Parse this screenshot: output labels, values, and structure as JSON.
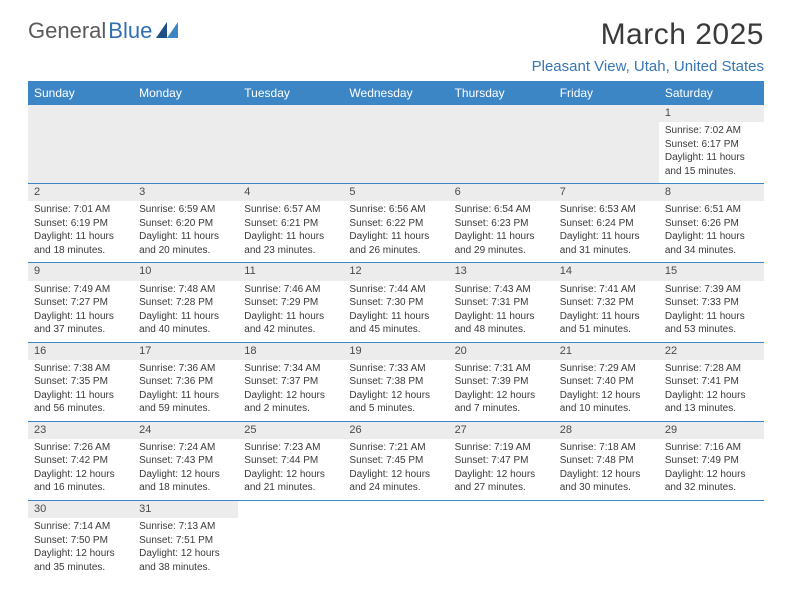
{
  "logo": {
    "text1": "General",
    "text2": "Blue"
  },
  "title": "March 2025",
  "location": "Pleasant View, Utah, United States",
  "header_bg": "#3c86c6",
  "header_fg": "#ffffff",
  "divider_color": "#3c86c6",
  "daynum_bg": "#ececec",
  "text_color": "#3a3a3a",
  "accent_color": "#3776b5",
  "weekdays": [
    "Sunday",
    "Monday",
    "Tuesday",
    "Wednesday",
    "Thursday",
    "Friday",
    "Saturday"
  ],
  "grid": [
    [
      {
        "n": "",
        "lines": []
      },
      {
        "n": "",
        "lines": []
      },
      {
        "n": "",
        "lines": []
      },
      {
        "n": "",
        "lines": []
      },
      {
        "n": "",
        "lines": []
      },
      {
        "n": "",
        "lines": []
      },
      {
        "n": "1",
        "lines": [
          "Sunrise: 7:02 AM",
          "Sunset: 6:17 PM",
          "Daylight: 11 hours",
          "and 15 minutes."
        ]
      }
    ],
    [
      {
        "n": "2",
        "lines": [
          "Sunrise: 7:01 AM",
          "Sunset: 6:19 PM",
          "Daylight: 11 hours",
          "and 18 minutes."
        ]
      },
      {
        "n": "3",
        "lines": [
          "Sunrise: 6:59 AM",
          "Sunset: 6:20 PM",
          "Daylight: 11 hours",
          "and 20 minutes."
        ]
      },
      {
        "n": "4",
        "lines": [
          "Sunrise: 6:57 AM",
          "Sunset: 6:21 PM",
          "Daylight: 11 hours",
          "and 23 minutes."
        ]
      },
      {
        "n": "5",
        "lines": [
          "Sunrise: 6:56 AM",
          "Sunset: 6:22 PM",
          "Daylight: 11 hours",
          "and 26 minutes."
        ]
      },
      {
        "n": "6",
        "lines": [
          "Sunrise: 6:54 AM",
          "Sunset: 6:23 PM",
          "Daylight: 11 hours",
          "and 29 minutes."
        ]
      },
      {
        "n": "7",
        "lines": [
          "Sunrise: 6:53 AM",
          "Sunset: 6:24 PM",
          "Daylight: 11 hours",
          "and 31 minutes."
        ]
      },
      {
        "n": "8",
        "lines": [
          "Sunrise: 6:51 AM",
          "Sunset: 6:26 PM",
          "Daylight: 11 hours",
          "and 34 minutes."
        ]
      }
    ],
    [
      {
        "n": "9",
        "lines": [
          "Sunrise: 7:49 AM",
          "Sunset: 7:27 PM",
          "Daylight: 11 hours",
          "and 37 minutes."
        ]
      },
      {
        "n": "10",
        "lines": [
          "Sunrise: 7:48 AM",
          "Sunset: 7:28 PM",
          "Daylight: 11 hours",
          "and 40 minutes."
        ]
      },
      {
        "n": "11",
        "lines": [
          "Sunrise: 7:46 AM",
          "Sunset: 7:29 PM",
          "Daylight: 11 hours",
          "and 42 minutes."
        ]
      },
      {
        "n": "12",
        "lines": [
          "Sunrise: 7:44 AM",
          "Sunset: 7:30 PM",
          "Daylight: 11 hours",
          "and 45 minutes."
        ]
      },
      {
        "n": "13",
        "lines": [
          "Sunrise: 7:43 AM",
          "Sunset: 7:31 PM",
          "Daylight: 11 hours",
          "and 48 minutes."
        ]
      },
      {
        "n": "14",
        "lines": [
          "Sunrise: 7:41 AM",
          "Sunset: 7:32 PM",
          "Daylight: 11 hours",
          "and 51 minutes."
        ]
      },
      {
        "n": "15",
        "lines": [
          "Sunrise: 7:39 AM",
          "Sunset: 7:33 PM",
          "Daylight: 11 hours",
          "and 53 minutes."
        ]
      }
    ],
    [
      {
        "n": "16",
        "lines": [
          "Sunrise: 7:38 AM",
          "Sunset: 7:35 PM",
          "Daylight: 11 hours",
          "and 56 minutes."
        ]
      },
      {
        "n": "17",
        "lines": [
          "Sunrise: 7:36 AM",
          "Sunset: 7:36 PM",
          "Daylight: 11 hours",
          "and 59 minutes."
        ]
      },
      {
        "n": "18",
        "lines": [
          "Sunrise: 7:34 AM",
          "Sunset: 7:37 PM",
          "Daylight: 12 hours",
          "and 2 minutes."
        ]
      },
      {
        "n": "19",
        "lines": [
          "Sunrise: 7:33 AM",
          "Sunset: 7:38 PM",
          "Daylight: 12 hours",
          "and 5 minutes."
        ]
      },
      {
        "n": "20",
        "lines": [
          "Sunrise: 7:31 AM",
          "Sunset: 7:39 PM",
          "Daylight: 12 hours",
          "and 7 minutes."
        ]
      },
      {
        "n": "21",
        "lines": [
          "Sunrise: 7:29 AM",
          "Sunset: 7:40 PM",
          "Daylight: 12 hours",
          "and 10 minutes."
        ]
      },
      {
        "n": "22",
        "lines": [
          "Sunrise: 7:28 AM",
          "Sunset: 7:41 PM",
          "Daylight: 12 hours",
          "and 13 minutes."
        ]
      }
    ],
    [
      {
        "n": "23",
        "lines": [
          "Sunrise: 7:26 AM",
          "Sunset: 7:42 PM",
          "Daylight: 12 hours",
          "and 16 minutes."
        ]
      },
      {
        "n": "24",
        "lines": [
          "Sunrise: 7:24 AM",
          "Sunset: 7:43 PM",
          "Daylight: 12 hours",
          "and 18 minutes."
        ]
      },
      {
        "n": "25",
        "lines": [
          "Sunrise: 7:23 AM",
          "Sunset: 7:44 PM",
          "Daylight: 12 hours",
          "and 21 minutes."
        ]
      },
      {
        "n": "26",
        "lines": [
          "Sunrise: 7:21 AM",
          "Sunset: 7:45 PM",
          "Daylight: 12 hours",
          "and 24 minutes."
        ]
      },
      {
        "n": "27",
        "lines": [
          "Sunrise: 7:19 AM",
          "Sunset: 7:47 PM",
          "Daylight: 12 hours",
          "and 27 minutes."
        ]
      },
      {
        "n": "28",
        "lines": [
          "Sunrise: 7:18 AM",
          "Sunset: 7:48 PM",
          "Daylight: 12 hours",
          "and 30 minutes."
        ]
      },
      {
        "n": "29",
        "lines": [
          "Sunrise: 7:16 AM",
          "Sunset: 7:49 PM",
          "Daylight: 12 hours",
          "and 32 minutes."
        ]
      }
    ],
    [
      {
        "n": "30",
        "lines": [
          "Sunrise: 7:14 AM",
          "Sunset: 7:50 PM",
          "Daylight: 12 hours",
          "and 35 minutes."
        ]
      },
      {
        "n": "31",
        "lines": [
          "Sunrise: 7:13 AM",
          "Sunset: 7:51 PM",
          "Daylight: 12 hours",
          "and 38 minutes."
        ]
      },
      {
        "n": "",
        "lines": []
      },
      {
        "n": "",
        "lines": []
      },
      {
        "n": "",
        "lines": []
      },
      {
        "n": "",
        "lines": []
      },
      {
        "n": "",
        "lines": []
      }
    ]
  ]
}
